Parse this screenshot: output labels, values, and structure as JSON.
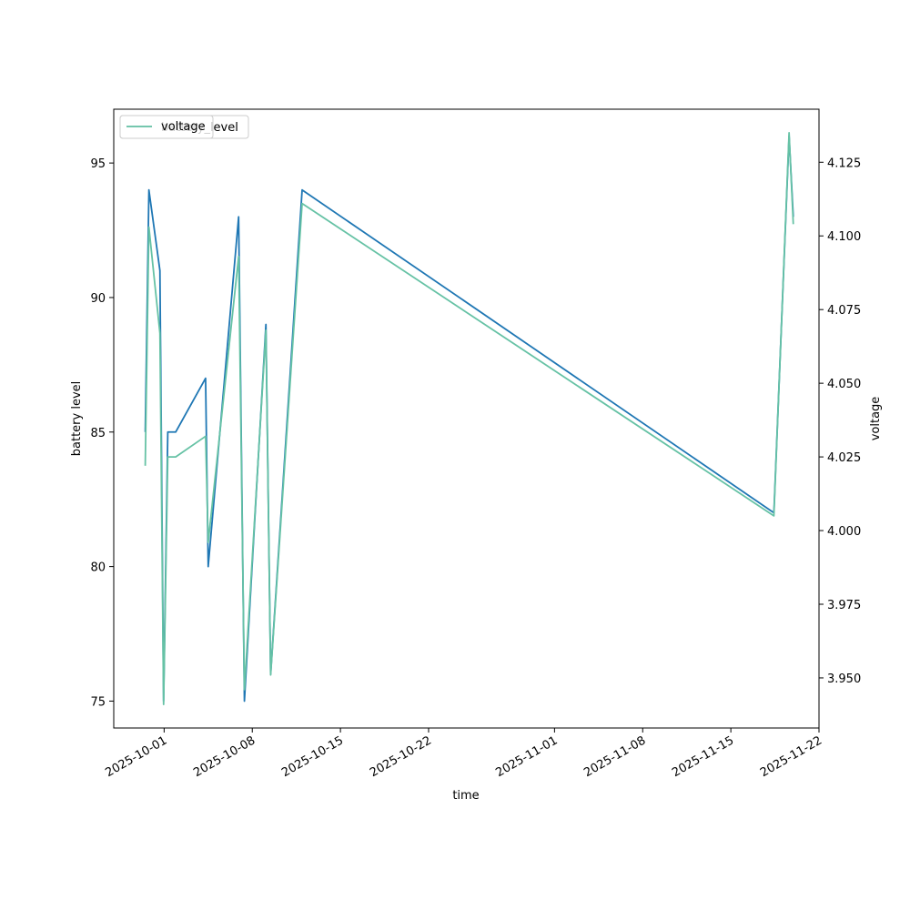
{
  "chart_data": {
    "type": "line",
    "xlabel": "time",
    "ylabel_left": "battery level",
    "ylabel_right": "voltage",
    "x_ticks": [
      "2025-10-01",
      "2025-10-08",
      "2025-10-15",
      "2025-10-22",
      "2025-11-01",
      "2025-11-08",
      "2025-11-15",
      "2025-11-22"
    ],
    "xlim": [
      "2025-09-27",
      "2025-11-22"
    ],
    "ylim_left": [
      74,
      97
    ],
    "ylim_right": [
      3.933,
      4.143
    ],
    "y_ticks_left": [
      75,
      80,
      85,
      90,
      95
    ],
    "y_ticks_right": [
      "3.950",
      "3.975",
      "4.000",
      "4.025",
      "4.050",
      "4.075",
      "4.100",
      "4.125"
    ],
    "legend": {
      "placement": "top-left",
      "entries": [
        "battery_level",
        "voltage"
      ]
    },
    "grid": false,
    "series": [
      {
        "name": "battery_level",
        "axis": "left",
        "color": "#1f77b4",
        "x": [
          "2025-09-29 12:00",
          "2025-09-29 19:00",
          "2025-09-30 16:00",
          "2025-09-30 23:00",
          "2025-10-01 07:00",
          "2025-10-01 22:00",
          "2025-10-04 07:00",
          "2025-10-04 12:00",
          "2025-10-06 22:00",
          "2025-10-07 09:00",
          "2025-10-09 02:00",
          "2025-10-09 11:00",
          "2025-10-11 23:00",
          "2025-11-18 10:00",
          "2025-11-19 15:00",
          "2025-11-19 23:00"
        ],
        "values": [
          85,
          94,
          91,
          75,
          85,
          85,
          87,
          80,
          93,
          75,
          89,
          76,
          94,
          82,
          96,
          93
        ]
      },
      {
        "name": "voltage",
        "axis": "right",
        "color": "#66c2a5",
        "x": [
          "2025-09-29 12:00",
          "2025-09-29 19:00",
          "2025-09-30 16:00",
          "2025-09-30 23:00",
          "2025-10-01 07:00",
          "2025-10-01 22:00",
          "2025-10-04 07:00",
          "2025-10-04 12:00",
          "2025-10-06 22:00",
          "2025-10-07 09:00",
          "2025-10-09 02:00",
          "2025-10-09 11:00",
          "2025-10-11 23:00",
          "2025-11-18 10:00",
          "2025-11-19 15:00",
          "2025-11-19 23:00"
        ],
        "values": [
          4.022,
          4.103,
          4.067,
          3.941,
          4.025,
          4.025,
          4.032,
          3.996,
          4.093,
          3.946,
          4.068,
          3.951,
          4.111,
          4.005,
          4.135,
          4.104
        ]
      }
    ]
  }
}
